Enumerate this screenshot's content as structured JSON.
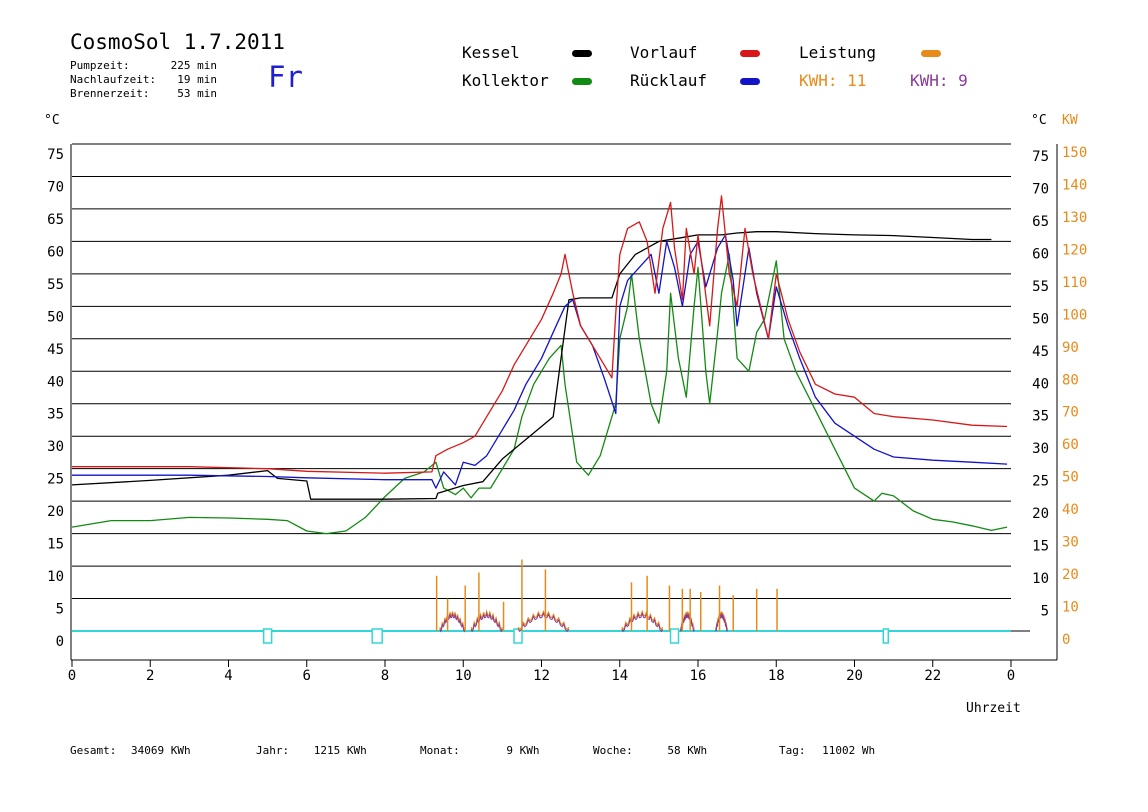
{
  "header": {
    "title": "CosmoSol 1.7.2011",
    "day": "Fr",
    "info": [
      {
        "label": "Pumpzeit:",
        "value": "225 min"
      },
      {
        "label": "Nachlaufzeit:",
        "value": "19 min"
      },
      {
        "label": "Brennerzeit:",
        "value": "53 min"
      }
    ]
  },
  "legend": {
    "kessel": "Kessel",
    "kollektor": "Kollektor",
    "vorlauf": "Vorlauf",
    "ruecklauf": "Rücklauf",
    "leistung": "Leistung",
    "kwh_orange": "KWH: 11",
    "kwh_purple": "KWH: 9"
  },
  "axes": {
    "left_unit": "°C",
    "right_unit": "°C",
    "right_unit2": "KW",
    "xlabel": "Uhrzeit"
  },
  "footer": {
    "gesamt_label": "Gesamt:",
    "gesamt_value": "34069 KWh",
    "jahr_label": "Jahr:",
    "jahr_value": "1215 KWh",
    "monat_label": "Monat:",
    "monat_value": "9 KWh",
    "woche_label": "Woche:",
    "woche_value": "58 KWh",
    "tag_label": "Tag:",
    "tag_value": "11002 Wh"
  },
  "colors": {
    "kessel": "#000000",
    "kollektor": "#138a13",
    "vorlauf": "#d81818",
    "ruecklauf": "#1313c8",
    "leistung": "#e88a1a",
    "kwh2": "#8a3a9a",
    "pump": "#33d6d6"
  },
  "chart_data": {
    "type": "line",
    "xlim": [
      0,
      24
    ],
    "ylim": [
      0,
      75
    ],
    "y2lim": [
      0,
      150
    ],
    "x_ticks": [
      "0",
      "2",
      "4",
      "6",
      "8",
      "10",
      "12",
      "14",
      "16",
      "18",
      "20",
      "22",
      "0"
    ],
    "y_ticks": [
      "0",
      "5",
      "10",
      "15",
      "20",
      "25",
      "30",
      "35",
      "40",
      "45",
      "50",
      "55",
      "60",
      "65",
      "70",
      "75"
    ],
    "y2_ticks": [
      "0",
      "10",
      "20",
      "30",
      "40",
      "50",
      "60",
      "70",
      "80",
      "90",
      "100",
      "110",
      "120",
      "130",
      "140",
      "150"
    ],
    "grid": true,
    "series": [
      {
        "name": "Kessel",
        "color_key": "kessel",
        "points": [
          [
            0,
            22.5
          ],
          [
            2,
            23.2
          ],
          [
            4,
            24
          ],
          [
            5,
            24.7
          ],
          [
            5.25,
            23.5
          ],
          [
            6,
            23.1
          ],
          [
            6.1,
            20.3
          ],
          [
            7,
            20.3
          ],
          [
            8,
            20.3
          ],
          [
            9.3,
            20.4
          ],
          [
            9.35,
            21.2
          ],
          [
            10,
            22.4
          ],
          [
            10.5,
            23
          ],
          [
            11,
            26.5
          ],
          [
            11.5,
            29
          ],
          [
            12,
            31.5
          ],
          [
            12.3,
            33
          ],
          [
            12.7,
            51
          ],
          [
            13,
            51.3
          ],
          [
            13.8,
            51.3
          ],
          [
            14,
            55
          ],
          [
            14.4,
            58
          ],
          [
            15,
            60
          ],
          [
            15.5,
            60.5
          ],
          [
            16,
            61
          ],
          [
            16.6,
            61
          ],
          [
            17,
            61.3
          ],
          [
            17.5,
            61.5
          ],
          [
            18,
            61.5
          ],
          [
            19,
            61.2
          ],
          [
            20,
            61
          ],
          [
            21,
            60.9
          ],
          [
            22,
            60.6
          ],
          [
            23,
            60.3
          ],
          [
            23.5,
            60.3
          ]
        ]
      },
      {
        "name": "Vorlauf",
        "color_key": "vorlauf",
        "points": [
          [
            0,
            25.3
          ],
          [
            3,
            25.3
          ],
          [
            5,
            25
          ],
          [
            6,
            24.6
          ],
          [
            8,
            24.3
          ],
          [
            9.2,
            24.5
          ],
          [
            9.3,
            27
          ],
          [
            9.6,
            28
          ],
          [
            10,
            29
          ],
          [
            10.3,
            30
          ],
          [
            10.6,
            33
          ],
          [
            11,
            37
          ],
          [
            11.3,
            41
          ],
          [
            11.7,
            45
          ],
          [
            12,
            48
          ],
          [
            12.3,
            52
          ],
          [
            12.5,
            55
          ],
          [
            12.6,
            58
          ],
          [
            12.8,
            52
          ],
          [
            13,
            47
          ],
          [
            13.5,
            42
          ],
          [
            13.8,
            39
          ],
          [
            13.9,
            49
          ],
          [
            14,
            58
          ],
          [
            14.2,
            62
          ],
          [
            14.5,
            63
          ],
          [
            14.7,
            60
          ],
          [
            14.9,
            52
          ],
          [
            15.1,
            62
          ],
          [
            15.3,
            66
          ],
          [
            15.4,
            59
          ],
          [
            15.6,
            51
          ],
          [
            15.7,
            62
          ],
          [
            15.9,
            55
          ],
          [
            16,
            61
          ],
          [
            16.3,
            47
          ],
          [
            16.5,
            62
          ],
          [
            16.6,
            67
          ],
          [
            16.8,
            55
          ],
          [
            17,
            50
          ],
          [
            17.2,
            62
          ],
          [
            17.4,
            55
          ],
          [
            17.6,
            50
          ],
          [
            17.8,
            45
          ],
          [
            18,
            55
          ],
          [
            18.3,
            48
          ],
          [
            18.6,
            43
          ],
          [
            19,
            38
          ],
          [
            19.5,
            36.5
          ],
          [
            20,
            36
          ],
          [
            20.5,
            33.5
          ],
          [
            21,
            33
          ],
          [
            22,
            32.5
          ],
          [
            23,
            31.7
          ],
          [
            23.9,
            31.5
          ]
        ]
      },
      {
        "name": "Rücklauf",
        "color_key": "ruecklauf",
        "points": [
          [
            0,
            24
          ],
          [
            3,
            24
          ],
          [
            5,
            23.8
          ],
          [
            6,
            23.6
          ],
          [
            8,
            23.3
          ],
          [
            9.2,
            23.3
          ],
          [
            9.3,
            22
          ],
          [
            9.5,
            24.5
          ],
          [
            9.8,
            22.5
          ],
          [
            10,
            26
          ],
          [
            10.3,
            25.5
          ],
          [
            10.6,
            27
          ],
          [
            11,
            31
          ],
          [
            11.3,
            34
          ],
          [
            11.6,
            38
          ],
          [
            11.9,
            41
          ],
          [
            12,
            42
          ],
          [
            12.3,
            46
          ],
          [
            12.6,
            50
          ],
          [
            12.8,
            51
          ],
          [
            13,
            47
          ],
          [
            13.3,
            44
          ],
          [
            13.6,
            39
          ],
          [
            13.9,
            33.5
          ],
          [
            14,
            50
          ],
          [
            14.2,
            54
          ],
          [
            14.5,
            56
          ],
          [
            14.8,
            58
          ],
          [
            15,
            52
          ],
          [
            15.2,
            60
          ],
          [
            15.4,
            56
          ],
          [
            15.6,
            50
          ],
          [
            15.8,
            58
          ],
          [
            16,
            60
          ],
          [
            16.2,
            53
          ],
          [
            16.5,
            59
          ],
          [
            16.7,
            61
          ],
          [
            16.9,
            54
          ],
          [
            17,
            47
          ],
          [
            17.3,
            59
          ],
          [
            17.5,
            52
          ],
          [
            17.8,
            45
          ],
          [
            18,
            53
          ],
          [
            18.3,
            47
          ],
          [
            18.6,
            42
          ],
          [
            19,
            36
          ],
          [
            19.5,
            32
          ],
          [
            20,
            30
          ],
          [
            20.5,
            28
          ],
          [
            21,
            26.8
          ],
          [
            22,
            26.3
          ],
          [
            23,
            26
          ],
          [
            23.9,
            25.7
          ]
        ]
      },
      {
        "name": "Kollektor",
        "color_key": "kollektor",
        "points": [
          [
            0,
            16
          ],
          [
            0.5,
            16.5
          ],
          [
            1,
            17
          ],
          [
            2,
            17
          ],
          [
            3,
            17.5
          ],
          [
            4,
            17.4
          ],
          [
            5,
            17.2
          ],
          [
            5.5,
            17
          ],
          [
            6,
            15.4
          ],
          [
            6.5,
            15
          ],
          [
            7,
            15.4
          ],
          [
            7.5,
            17.5
          ],
          [
            8,
            20.7
          ],
          [
            8.5,
            23.5
          ],
          [
            9,
            24.5
          ],
          [
            9.3,
            26
          ],
          [
            9.5,
            22
          ],
          [
            9.8,
            21
          ],
          [
            10,
            22
          ],
          [
            10.2,
            20.5
          ],
          [
            10.4,
            22
          ],
          [
            10.7,
            22
          ],
          [
            11,
            25
          ],
          [
            11.3,
            28
          ],
          [
            11.5,
            33
          ],
          [
            11.8,
            38
          ],
          [
            12,
            40
          ],
          [
            12.2,
            42
          ],
          [
            12.5,
            44
          ],
          [
            12.6,
            38
          ],
          [
            12.9,
            26
          ],
          [
            13.2,
            24
          ],
          [
            13.5,
            27
          ],
          [
            13.7,
            31
          ],
          [
            13.9,
            35
          ],
          [
            14,
            45
          ],
          [
            14.2,
            50
          ],
          [
            14.3,
            55
          ],
          [
            14.5,
            45
          ],
          [
            14.8,
            35
          ],
          [
            15,
            32
          ],
          [
            15.2,
            40
          ],
          [
            15.3,
            52
          ],
          [
            15.5,
            42
          ],
          [
            15.7,
            36
          ],
          [
            15.9,
            50
          ],
          [
            16,
            56
          ],
          [
            16.2,
            40
          ],
          [
            16.3,
            35
          ],
          [
            16.5,
            46
          ],
          [
            16.6,
            52
          ],
          [
            16.8,
            58
          ],
          [
            17,
            42
          ],
          [
            17.3,
            40
          ],
          [
            17.5,
            46
          ],
          [
            17.7,
            48
          ],
          [
            18,
            57
          ],
          [
            18.2,
            45
          ],
          [
            18.5,
            40
          ],
          [
            19,
            34
          ],
          [
            19.5,
            28
          ],
          [
            20,
            22
          ],
          [
            20.5,
            20
          ],
          [
            20.7,
            21.2
          ],
          [
            21,
            20.8
          ],
          [
            21.5,
            18.5
          ],
          [
            22,
            17.2
          ],
          [
            22.5,
            16.8
          ],
          [
            23,
            16.2
          ],
          [
            23.5,
            15.5
          ],
          [
            23.9,
            16
          ]
        ]
      }
    ],
    "leistung_events": [
      [
        9.32,
        17
      ],
      [
        9.6,
        10
      ],
      [
        10.05,
        14
      ],
      [
        10.4,
        18
      ],
      [
        11.03,
        9
      ],
      [
        11.5,
        22
      ],
      [
        12.1,
        19
      ],
      [
        14.3,
        15
      ],
      [
        14.7,
        17
      ],
      [
        15.27,
        14
      ],
      [
        15.6,
        13
      ],
      [
        15.8,
        13
      ],
      [
        16.07,
        12
      ],
      [
        16.55,
        14
      ],
      [
        16.9,
        11
      ],
      [
        17.5,
        13
      ],
      [
        18.02,
        13
      ]
    ],
    "leistung_humps": [
      [
        9.4,
        10.05
      ],
      [
        10.2,
        11
      ],
      [
        11.4,
        12.7
      ],
      [
        14.05,
        15.1
      ],
      [
        15.55,
        15.9
      ],
      [
        16.45,
        16.75
      ]
    ],
    "pump_markers": [
      5,
      7.8,
      11.4,
      15.4,
      20.8
    ]
  }
}
